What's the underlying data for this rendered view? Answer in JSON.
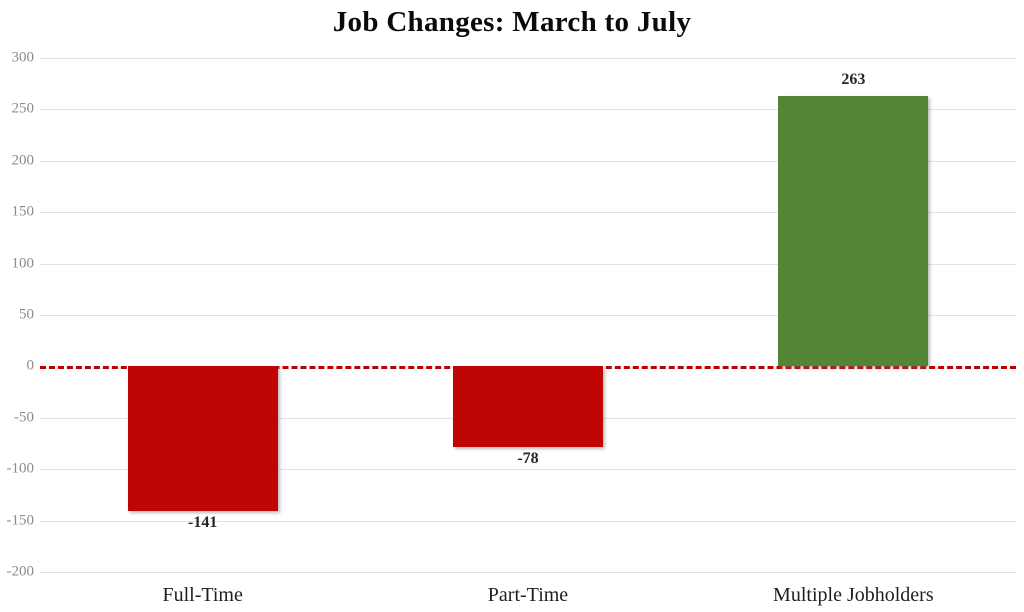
{
  "chart_data": {
    "type": "bar",
    "title": "Job Changes: March to July",
    "categories": [
      "Full-Time",
      "Part-Time",
      "Multiple Jobholders"
    ],
    "values": [
      -141,
      -78,
      263
    ],
    "value_labels": [
      "-141",
      "-78",
      "263"
    ],
    "xlabel": "",
    "ylabel": "",
    "ylim": [
      -200,
      300
    ],
    "yticks": [
      300,
      250,
      200,
      150,
      100,
      50,
      0,
      -50,
      -100,
      -150,
      -200
    ],
    "ytick_labels": [
      "300",
      "250",
      "200",
      "150",
      "100",
      "50",
      "0",
      "-50",
      "-100",
      "-150",
      "-200"
    ],
    "grid": true,
    "legend": "none",
    "zero_line": {
      "style": "dashed",
      "color": "#c00000"
    },
    "colors": {
      "negative_bar": "#c00505",
      "positive_bar": "#548534",
      "gridline": "#e2e2e2",
      "tick_label": "#8c8c8c",
      "title": "#0a0a0a",
      "value_label": "#262626",
      "category_label": "#1f1f1f",
      "background": "#ffffff"
    }
  }
}
